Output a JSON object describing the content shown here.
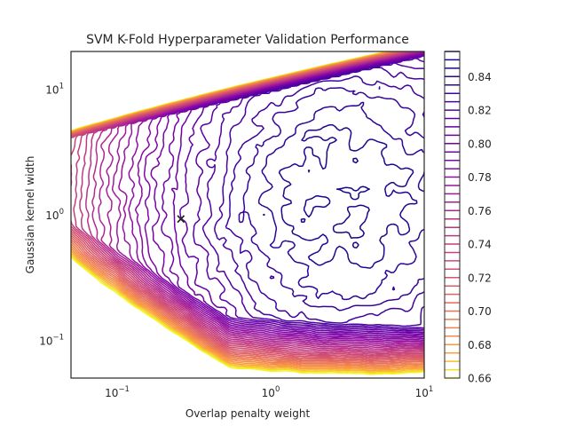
{
  "chart_data": {
    "type": "contour",
    "title": "SVM K-Fold Hyperparameter Validation Performance",
    "xlabel": "Overlap penalty weight",
    "ylabel": "Gaussian kernel width",
    "xscale": "log",
    "yscale": "log",
    "xlim": [
      0.05,
      10
    ],
    "ylim": [
      0.05,
      20
    ],
    "x_ticks": [
      {
        "base": "10",
        "exp": "−1",
        "value": 0.1
      },
      {
        "base": "10",
        "exp": "0",
        "value": 1
      },
      {
        "base": "10",
        "exp": "1",
        "value": 10
      }
    ],
    "y_ticks": [
      {
        "base": "10",
        "exp": "−1",
        "value": 0.1
      },
      {
        "base": "10",
        "exp": "0",
        "value": 1
      },
      {
        "base": "10",
        "exp": "1",
        "value": 10
      }
    ],
    "grid": false,
    "colormap": "plasma",
    "colorbar": {
      "min": 0.66,
      "max": 0.855,
      "levels_step": 0.005,
      "ticks": [
        "0.66",
        "0.68",
        "0.70",
        "0.72",
        "0.74",
        "0.76",
        "0.78",
        "0.80",
        "0.82",
        "0.84"
      ]
    },
    "optimum_marker": {
      "x": 0.26,
      "y": 0.93,
      "symbol": "×",
      "color": "#ff0000"
    },
    "accuracy_landscape": {
      "plateau_center": {
        "x": 0.5,
        "y": 1.5
      },
      "upper_ridge": "steep falloff along a diagonal line from (0.05, 4.5) to (10, 16)",
      "lower_ridge": "gradual falloff from (0.05, 0.75) down toward (1.2, 0.12), then flattening toward large penalty"
    }
  }
}
